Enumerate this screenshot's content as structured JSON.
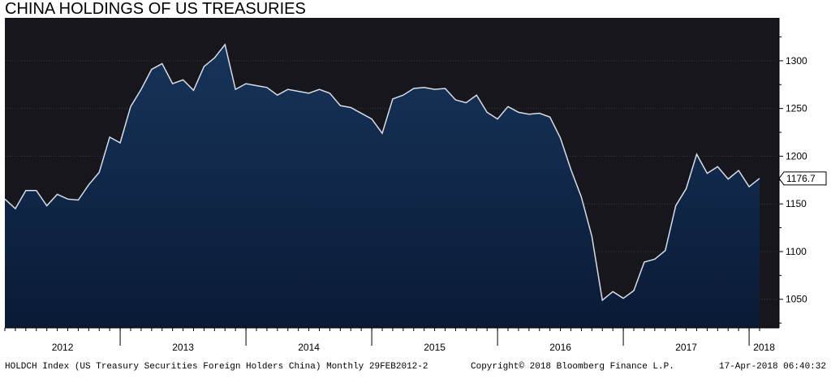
{
  "chart_data": {
    "type": "area",
    "title": "CHINA HOLDINGS OF US TREASURIES",
    "xlabel": "",
    "ylabel": "",
    "ylim": [
      1020,
      1345
    ],
    "y_ticks": [
      1050,
      1100,
      1150,
      1200,
      1250,
      1300
    ],
    "x_year_labels": [
      "2012",
      "2013",
      "2014",
      "2015",
      "2016",
      "2017",
      "2018"
    ],
    "last_value_label": "1176.7",
    "grid": true,
    "series": [
      {
        "values": [
          1155,
          1145,
          1164,
          1164,
          1148,
          1160,
          1155,
          1154,
          1170,
          1183,
          1220,
          1214,
          1252,
          1270,
          1291,
          1297,
          1276,
          1280,
          1269,
          1294,
          1303,
          1317,
          1270,
          1276,
          1274,
          1272,
          1264,
          1270,
          1268,
          1266,
          1270,
          1266,
          1253,
          1251,
          1245,
          1239,
          1224,
          1260,
          1264,
          1271,
          1272,
          1270,
          1271,
          1259,
          1256,
          1264,
          1246,
          1239,
          1252,
          1246,
          1244,
          1245,
          1241,
          1219,
          1186,
          1157,
          1116,
          1049,
          1058,
          1051,
          1059,
          1089,
          1092,
          1101,
          1148,
          1166,
          1202,
          1182,
          1189,
          1176,
          1185,
          1168,
          1176.7
        ]
      }
    ]
  },
  "colors": {
    "plot_bg": "#16161c",
    "area_top": "#163459",
    "area_bottom": "#0a1a36",
    "line": "#d8dde6",
    "grid": "#3a3a44"
  },
  "footer": {
    "left": "HOLDCH Index (US Treasury Securities Foreign Holders China) Monthly 29FEB2012-2",
    "center": "Copyright© 2018 Bloomberg Finance L.P.",
    "right": "17-Apr-2018 06:40:32"
  }
}
